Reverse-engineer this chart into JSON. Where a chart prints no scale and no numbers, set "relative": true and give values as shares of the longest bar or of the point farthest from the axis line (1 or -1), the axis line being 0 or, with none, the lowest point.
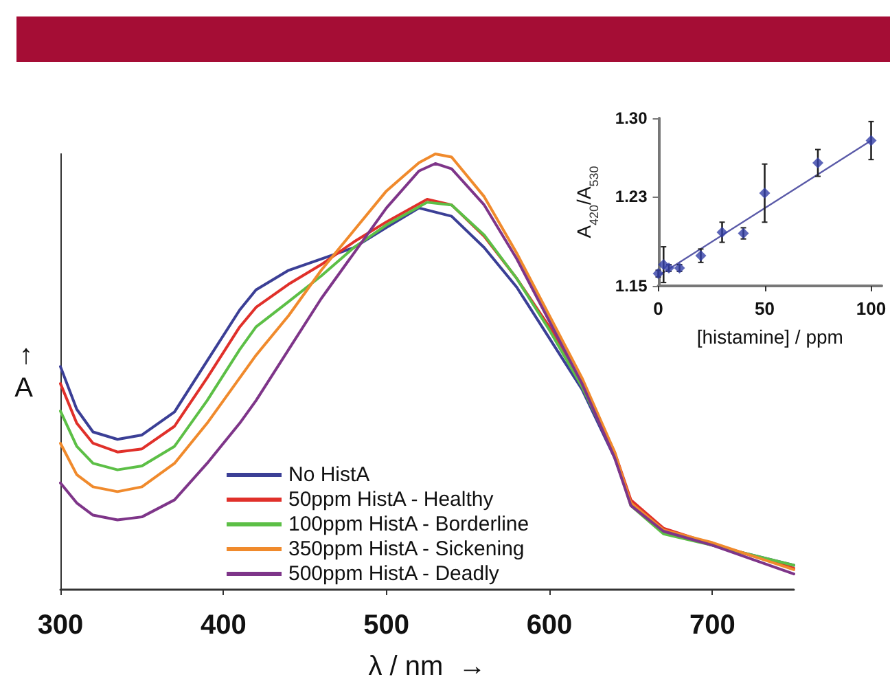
{
  "chart_data": [
    {
      "type": "line",
      "relative": true,
      "xlabel": "λ / nm  →",
      "ylabel": "↑\nA",
      "xlim": [
        300,
        750
      ],
      "xticks": [
        300,
        400,
        500,
        600,
        700
      ],
      "tick_labels": "x",
      "legend": "bottom",
      "marker": "none",
      "grid": false,
      "series": [
        {
          "name": "No HistA",
          "color": "#3b3f96",
          "x": [
            300,
            310,
            320,
            335,
            350,
            370,
            390,
            410,
            420,
            440,
            460,
            480,
            500,
            520,
            540,
            560,
            580,
            600,
            620,
            640,
            650,
            670,
            700,
            750
          ],
          "values": [
            0.512,
            0.414,
            0.362,
            0.345,
            0.355,
            0.408,
            0.525,
            0.642,
            0.688,
            0.733,
            0.759,
            0.785,
            0.831,
            0.876,
            0.857,
            0.785,
            0.694,
            0.577,
            0.46,
            0.303,
            0.199,
            0.134,
            0.102,
            0.056
          ]
        },
        {
          "name": "50ppm HistA - Healthy",
          "color": "#e0302a",
          "x": [
            300,
            310,
            320,
            335,
            350,
            370,
            390,
            410,
            420,
            440,
            460,
            480,
            500,
            525,
            540,
            560,
            580,
            600,
            620,
            640,
            650,
            670,
            700,
            750
          ],
          "values": [
            0.473,
            0.382,
            0.336,
            0.316,
            0.323,
            0.375,
            0.486,
            0.603,
            0.648,
            0.701,
            0.746,
            0.798,
            0.844,
            0.896,
            0.883,
            0.811,
            0.714,
            0.603,
            0.473,
            0.316,
            0.206,
            0.141,
            0.105,
            0.049
          ]
        },
        {
          "name": "100ppm HistA - Borderline",
          "color": "#5cbf46",
          "x": [
            300,
            310,
            320,
            335,
            350,
            370,
            390,
            410,
            420,
            440,
            460,
            480,
            500,
            525,
            540,
            560,
            580,
            600,
            620,
            640,
            650,
            670,
            700,
            750
          ],
          "values": [
            0.41,
            0.329,
            0.29,
            0.275,
            0.284,
            0.329,
            0.434,
            0.551,
            0.603,
            0.661,
            0.72,
            0.785,
            0.837,
            0.889,
            0.883,
            0.814,
            0.714,
            0.596,
            0.466,
            0.31,
            0.193,
            0.128,
            0.102,
            0.056
          ]
        },
        {
          "name": "350ppm HistA - Sickening",
          "color": "#f08a2c",
          "x": [
            300,
            310,
            320,
            335,
            350,
            370,
            390,
            410,
            420,
            440,
            460,
            480,
            500,
            520,
            530,
            540,
            560,
            580,
            600,
            620,
            640,
            650,
            670,
            700,
            750
          ],
          "values": [
            0.336,
            0.264,
            0.236,
            0.225,
            0.236,
            0.29,
            0.382,
            0.486,
            0.538,
            0.629,
            0.733,
            0.824,
            0.915,
            0.98,
            1.0,
            0.993,
            0.902,
            0.772,
            0.629,
            0.486,
            0.316,
            0.199,
            0.137,
            0.108,
            0.046
          ]
        },
        {
          "name": "500ppm HistA - Deadly",
          "color": "#7e3589",
          "x": [
            300,
            310,
            320,
            335,
            350,
            370,
            390,
            410,
            420,
            440,
            460,
            480,
            500,
            520,
            530,
            540,
            560,
            580,
            600,
            620,
            640,
            650,
            670,
            700,
            750
          ],
          "values": [
            0.245,
            0.199,
            0.171,
            0.16,
            0.167,
            0.206,
            0.29,
            0.382,
            0.434,
            0.551,
            0.668,
            0.772,
            0.876,
            0.961,
            0.978,
            0.966,
            0.883,
            0.759,
            0.616,
            0.473,
            0.303,
            0.193,
            0.134,
            0.102,
            0.036
          ]
        }
      ]
    },
    {
      "type": "scatter",
      "xlabel": "[histamine] / ppm",
      "ylabel": "A$_{420}$/A$_{530}$",
      "xlim": [
        0,
        105
      ],
      "xticks": [
        0,
        50,
        100
      ],
      "ylim": [
        1.15,
        1.3
      ],
      "yticks": [
        1.15,
        1.23,
        {
          "value": 1.3,
          "label": "1.30"
        }
      ],
      "legend": false,
      "grid": false,
      "series": [
        {
          "color": "#3440a8",
          "marker": "diamond",
          "x": [
            0,
            2.5,
            5,
            10,
            20,
            30,
            40,
            50,
            75,
            100
          ],
          "values": [
            1.161,
            1.169,
            1.166,
            1.166,
            1.177,
            1.198,
            1.197,
            1.233,
            1.26,
            1.28
          ],
          "errors": [
            0.003,
            0.016,
            0.003,
            0.003,
            0.006,
            0.009,
            0.005,
            0.026,
            0.012,
            0.017
          ]
        },
        {
          "type": "line",
          "color": "#5a5aa8",
          "x": [
            0,
            100
          ],
          "values": [
            1.159,
            1.28
          ]
        }
      ]
    }
  ]
}
